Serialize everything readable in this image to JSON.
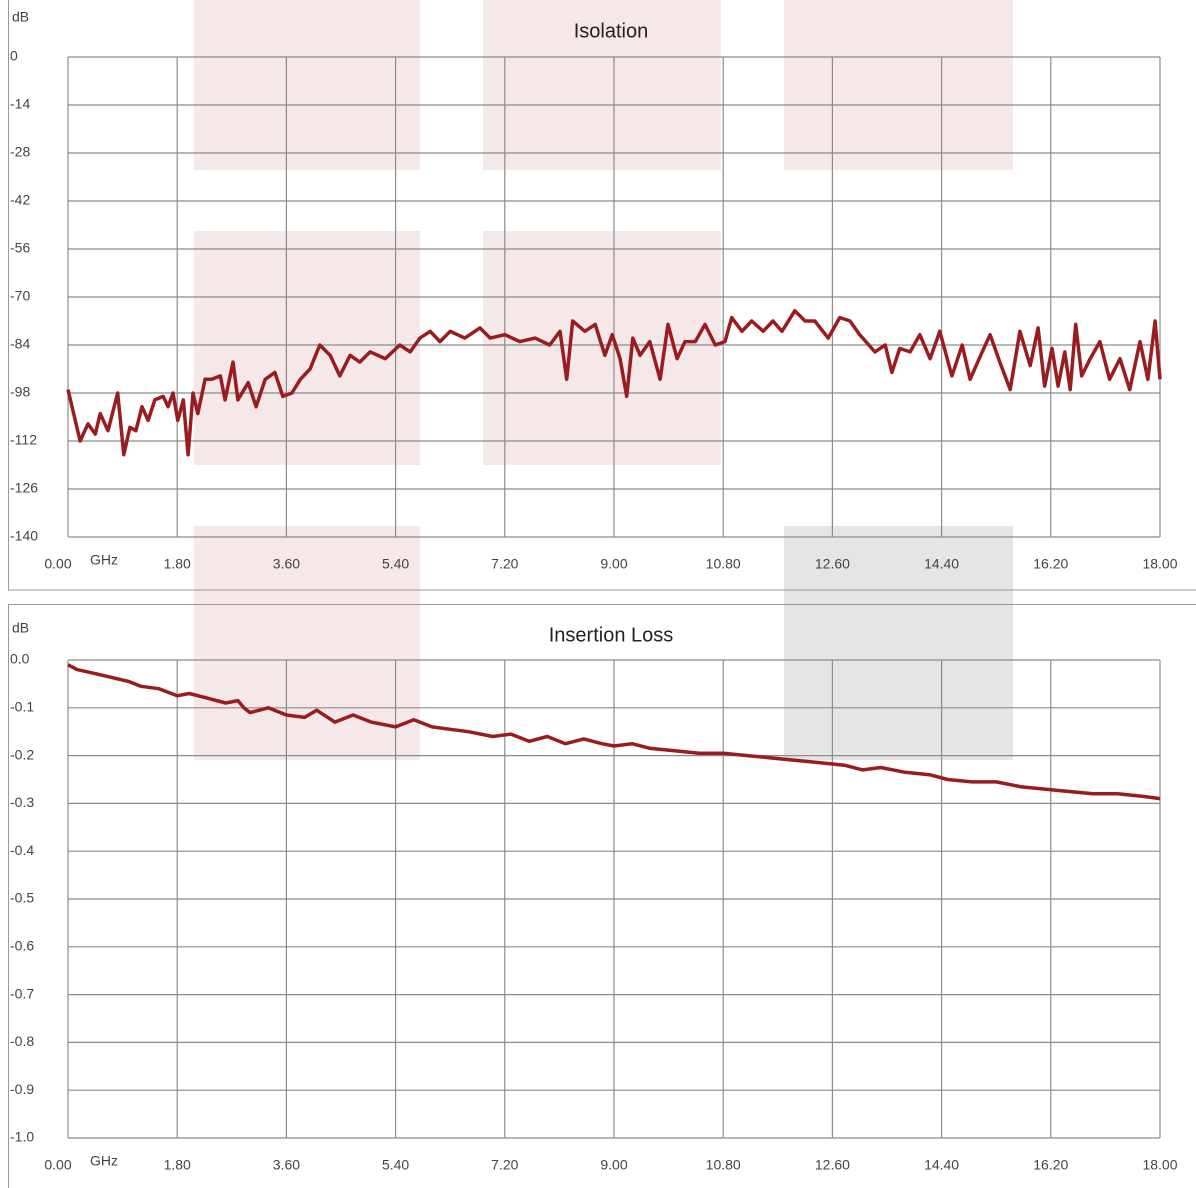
{
  "chart_data": [
    {
      "type": "line",
      "title": "Isolation",
      "y_label": "dB",
      "x_label": "GHz",
      "color": "#9b1c1f",
      "grid": true,
      "xlim": [
        0,
        18
      ],
      "ylim": [
        -140,
        0
      ],
      "xticks": [
        {
          "value": 0,
          "label": "0.00"
        },
        {
          "value": 1.8,
          "label": "1.80"
        },
        {
          "value": 3.6,
          "label": "3.60"
        },
        {
          "value": 5.4,
          "label": "5.40"
        },
        {
          "value": 7.2,
          "label": "7.20"
        },
        {
          "value": 9,
          "label": "9.00"
        },
        {
          "value": 10.8,
          "label": "10.80"
        },
        {
          "value": 12.6,
          "label": "12.60"
        },
        {
          "value": 14.4,
          "label": "14.40"
        },
        {
          "value": 16.2,
          "label": "16.20"
        },
        {
          "value": 18,
          "label": "18.00"
        }
      ],
      "yticks": [
        0,
        -14,
        -28,
        -42,
        -56,
        -70,
        -84,
        -98,
        -112,
        -126,
        -140
      ],
      "x": [
        0,
        0.2,
        0.33,
        0.45,
        0.53,
        0.66,
        0.82,
        0.92,
        1.02,
        1.12,
        1.22,
        1.32,
        1.43,
        1.57,
        1.65,
        1.73,
        1.81,
        1.9,
        1.98,
        2.06,
        2.14,
        2.26,
        2.37,
        2.51,
        2.59,
        2.72,
        2.8,
        2.97,
        3.1,
        3.25,
        3.41,
        3.54,
        3.69,
        3.83,
        3.99,
        4.15,
        4.32,
        4.48,
        4.65,
        4.81,
        4.98,
        5.23,
        5.47,
        5.64,
        5.8,
        5.97,
        6.13,
        6.3,
        6.54,
        6.79,
        6.96,
        7.2,
        7.45,
        7.7,
        7.94,
        8.11,
        8.22,
        8.32,
        8.52,
        8.69,
        8.85,
        8.97,
        9.1,
        9.21,
        9.31,
        9.43,
        9.59,
        9.76,
        9.89,
        10.04,
        10.17,
        10.34,
        10.5,
        10.67,
        10.83,
        10.94,
        11.11,
        11.27,
        11.46,
        11.62,
        11.77,
        11.98,
        12.15,
        12.31,
        12.53,
        12.72,
        12.89,
        13.05,
        13.3,
        13.47,
        13.58,
        13.71,
        13.88,
        14.04,
        14.21,
        14.37,
        14.57,
        14.74,
        14.87,
        15.07,
        15.2,
        15.36,
        15.53,
        15.69,
        15.86,
        15.99,
        16.1,
        16.22,
        16.32,
        16.43,
        16.52,
        16.61,
        16.71,
        16.85,
        17.01,
        17.17,
        17.34,
        17.5,
        17.67,
        17.8,
        17.92,
        18
      ],
      "values": [
        -97,
        -112,
        -107,
        -110,
        -104,
        -109,
        -98,
        -116,
        -108,
        -109,
        -102,
        -106,
        -100,
        -99,
        -102,
        -98,
        -106,
        -100,
        -116,
        -98,
        -104,
        -94,
        -94,
        -93,
        -100,
        -89,
        -100,
        -95,
        -102,
        -94,
        -92,
        -99,
        -98,
        -94,
        -91,
        -84,
        -87,
        -93,
        -87,
        -89,
        -86,
        -88,
        -84,
        -86,
        -82,
        -80,
        -83,
        -80,
        -82,
        -79,
        -82,
        -81,
        -83,
        -82,
        -84,
        -80,
        -94,
        -77,
        -80,
        -78,
        -87,
        -81,
        -88,
        -99,
        -82,
        -87,
        -83,
        -94,
        -78,
        -88,
        -83,
        -83,
        -78,
        -84,
        -83,
        -76,
        -80,
        -77,
        -80,
        -77,
        -80,
        -74,
        -77,
        -77,
        -82,
        -76,
        -77,
        -81,
        -86,
        -84,
        -92,
        -85,
        -86,
        -81,
        -88,
        -80,
        -93,
        -84,
        -94,
        -86,
        -81,
        -89,
        -97,
        -80,
        -90,
        -79,
        -96,
        -85,
        -96,
        -86,
        -97,
        -78,
        -93,
        -88,
        -83,
        -94,
        -88,
        -97,
        -83,
        -94,
        -77,
        -94
      ]
    },
    {
      "type": "line",
      "title": "Insertion Loss",
      "y_label": "dB",
      "x_label": "GHz",
      "color": "#9b1c1f",
      "grid": true,
      "xlim": [
        0,
        18
      ],
      "ylim": [
        -1,
        0
      ],
      "xticks": [
        {
          "value": 0,
          "label": "0.00"
        },
        {
          "value": 1.8,
          "label": "1.80"
        },
        {
          "value": 3.6,
          "label": "3.60"
        },
        {
          "value": 5.4,
          "label": "5.40"
        },
        {
          "value": 7.2,
          "label": "7.20"
        },
        {
          "value": 9,
          "label": "9.00"
        },
        {
          "value": 10.8,
          "label": "10.80"
        },
        {
          "value": 12.6,
          "label": "12.60"
        },
        {
          "value": 14.4,
          "label": "14.40"
        },
        {
          "value": 16.2,
          "label": "16.20"
        },
        {
          "value": 18,
          "label": "18.00"
        }
      ],
      "yticks": [
        {
          "value": 0,
          "label": "0.0"
        },
        -0.1,
        -0.2,
        -0.3,
        -0.4,
        -0.5,
        -0.6,
        -0.7,
        -0.8,
        -0.9,
        {
          "value": -1,
          "label": "-1.0"
        }
      ],
      "x": [
        0,
        0.15,
        0.5,
        1.0,
        1.2,
        1.5,
        1.8,
        2.0,
        2.3,
        2.6,
        2.8,
        2.9,
        3.0,
        3.3,
        3.6,
        3.9,
        4.1,
        4.4,
        4.7,
        5.0,
        5.4,
        5.7,
        6.0,
        6.3,
        6.6,
        7.0,
        7.3,
        7.6,
        7.9,
        8.2,
        8.5,
        8.8,
        9.0,
        9.3,
        9.6,
        10.0,
        10.4,
        10.8,
        11.2,
        11.6,
        12.0,
        12.4,
        12.8,
        13.1,
        13.4,
        13.8,
        14.2,
        14.5,
        14.9,
        15.3,
        15.7,
        16.1,
        16.5,
        16.9,
        17.3,
        17.7,
        18
      ],
      "values": [
        -0.01,
        -0.02,
        -0.03,
        -0.045,
        -0.055,
        -0.06,
        -0.075,
        -0.07,
        -0.08,
        -0.09,
        -0.085,
        -0.1,
        -0.11,
        -0.1,
        -0.115,
        -0.12,
        -0.105,
        -0.13,
        -0.115,
        -0.13,
        -0.14,
        -0.125,
        -0.14,
        -0.145,
        -0.15,
        -0.16,
        -0.155,
        -0.17,
        -0.16,
        -0.175,
        -0.165,
        -0.175,
        -0.18,
        -0.175,
        -0.185,
        -0.19,
        -0.195,
        -0.195,
        -0.2,
        -0.205,
        -0.21,
        -0.215,
        -0.22,
        -0.23,
        -0.225,
        -0.235,
        -0.24,
        -0.25,
        -0.255,
        -0.255,
        -0.265,
        -0.27,
        -0.275,
        -0.28,
        -0.28,
        -0.285,
        -0.29
      ]
    }
  ]
}
